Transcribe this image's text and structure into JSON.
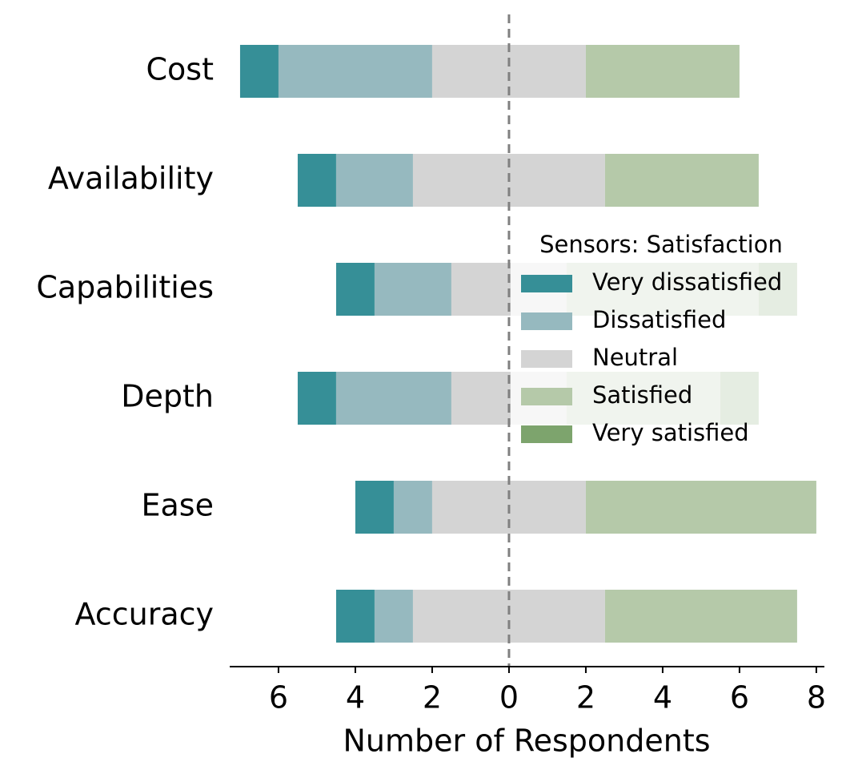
{
  "chart_data": {
    "type": "diverging-bar",
    "xlabel": "Number of Respondents",
    "categories": [
      "Cost",
      "Availability",
      "Capabilities",
      "Depth",
      "Ease",
      "Accuracy"
    ],
    "series": [
      {
        "name": "Very dissatisfied",
        "color": "#368f97",
        "values": [
          1,
          1,
          1,
          1,
          1,
          1
        ]
      },
      {
        "name": "Dissatisfied",
        "color": "#96b9bf",
        "values": [
          4,
          2,
          2,
          3,
          1,
          1
        ]
      },
      {
        "name": "Neutral",
        "color": "#d4d4d4",
        "values": [
          4,
          5,
          3,
          3,
          4,
          5
        ]
      },
      {
        "name": "Satisfied",
        "color": "#b5c9a9",
        "values": [
          4,
          4,
          5,
          4,
          6,
          5
        ]
      },
      {
        "name": "Very satisfied",
        "color": "#7da46d",
        "values": [
          0,
          0,
          1,
          1,
          0,
          0
        ]
      }
    ],
    "legend_title": "Sensors: Satisfaction",
    "xlim": [
      -7.27,
      8.21
    ],
    "xticks": [
      {
        "value": -6,
        "label": "6"
      },
      {
        "value": -4,
        "label": "4"
      },
      {
        "value": -2,
        "label": "2"
      },
      0,
      2,
      4,
      6,
      8
    ]
  }
}
